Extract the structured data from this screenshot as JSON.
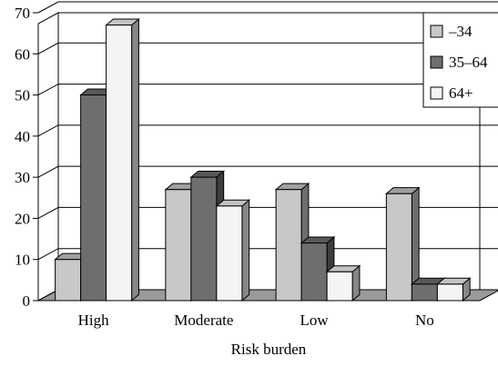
{
  "chart_data": {
    "type": "bar",
    "title": "",
    "xlabel": "Risk burden",
    "ylabel": "",
    "ylim": [
      0,
      70
    ],
    "yticks": [
      "0",
      "10",
      "20",
      "30",
      "40",
      "50",
      "60",
      "70"
    ],
    "grid": true,
    "legend_position": "top-right",
    "categories": [
      "High",
      "Moderate",
      "Low",
      "No"
    ],
    "series": [
      {
        "name": "–34",
        "values": [
          10,
          27,
          27,
          26
        ],
        "color": "#c8c8c8"
      },
      {
        "name": "35–64",
        "values": [
          50,
          30,
          14,
          4
        ],
        "color": "#6e6e6e"
      },
      {
        "name": "64+",
        "values": [
          67,
          23,
          7,
          4
        ],
        "color": "#f4f4f4"
      }
    ],
    "style": "3d-clustered"
  }
}
